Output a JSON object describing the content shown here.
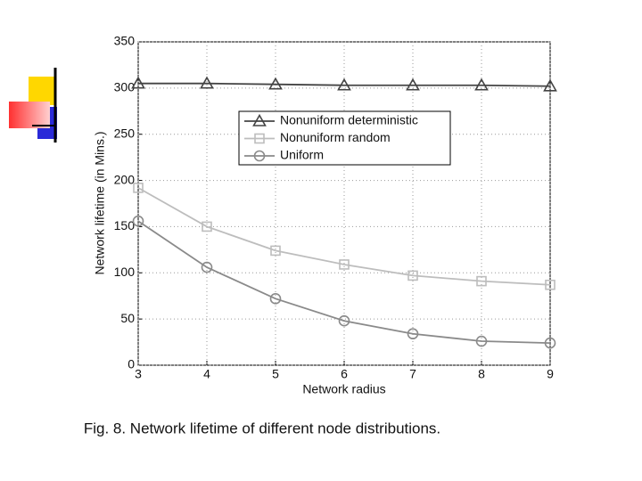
{
  "chart_data": {
    "type": "line",
    "caption": "Fig. 8. Network lifetime of different node distributions.",
    "x_label": "Network radius",
    "y_label": "Network lifetime (in Mins.)",
    "x": [
      3,
      4,
      5,
      6,
      7,
      8,
      9
    ],
    "series": [
      {
        "name": "Nonuniform deterministic",
        "color": "#444444",
        "marker": "triangle",
        "values": [
          305,
          305,
          304,
          303,
          303,
          303,
          302
        ]
      },
      {
        "name": "Nonuniform random",
        "color": "#bdbdbd",
        "marker": "square",
        "values": [
          192,
          150,
          124,
          109,
          97,
          91,
          87
        ]
      },
      {
        "name": "Uniform",
        "color": "#8a8a8a",
        "marker": "circle",
        "values": [
          156,
          106,
          72,
          48,
          34,
          26,
          24
        ]
      }
    ],
    "xlim": [
      3,
      9
    ],
    "xticks": [
      3,
      4,
      5,
      6,
      7,
      8,
      9
    ],
    "ylim": [
      0,
      350
    ],
    "yticks": [
      0,
      50,
      100,
      150,
      200,
      250,
      300,
      350
    ],
    "grid": true,
    "legend": "upper center"
  }
}
